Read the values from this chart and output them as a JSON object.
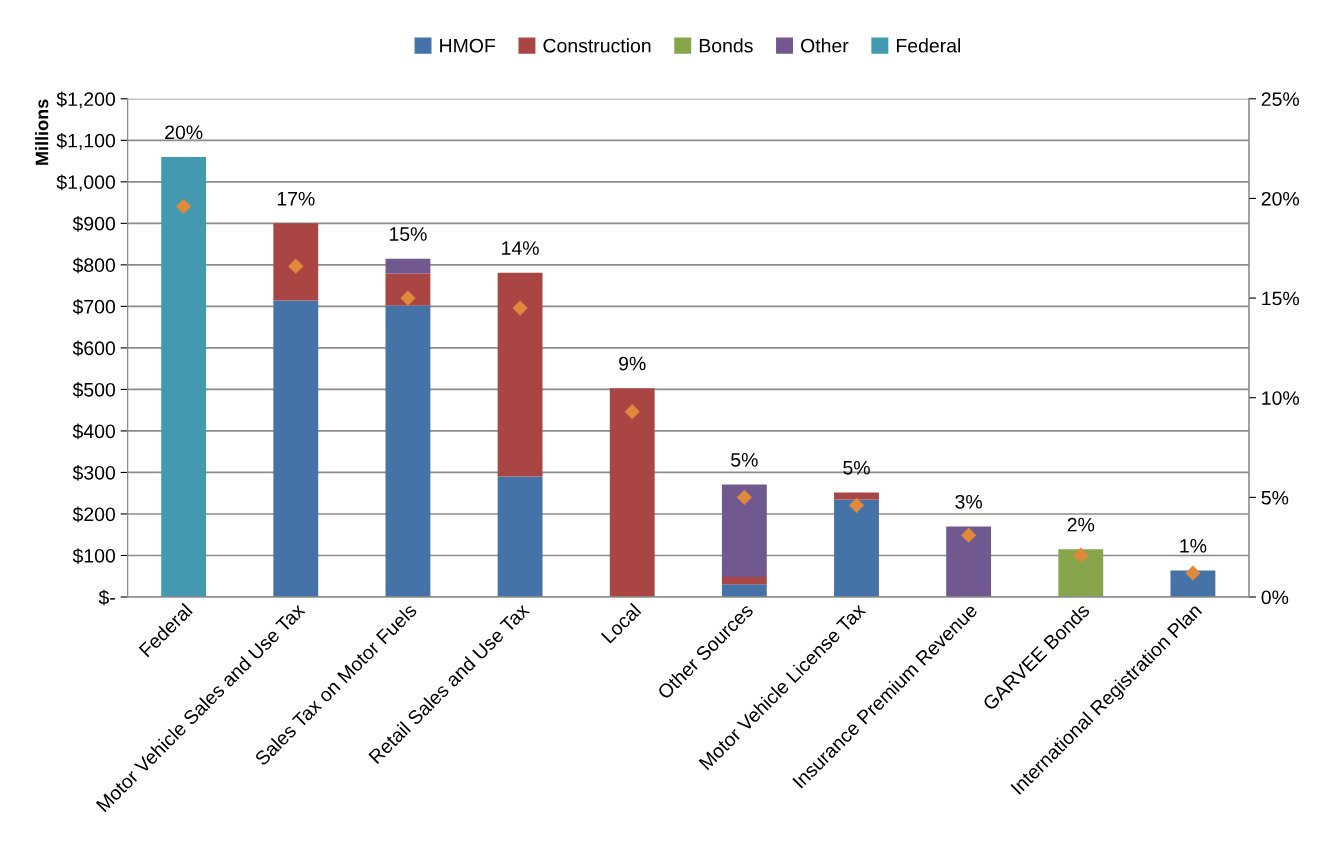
{
  "chart_data": {
    "type": "bar",
    "stacked": true,
    "ylabel": "Millions",
    "categories": [
      "Federal",
      "Motor Vehicle Sales and Use Tax",
      "Sales Tax on Motor Fuels",
      "Retail Sales and Use Tax",
      "Local",
      "Other Sources",
      "Motor Vehicle License Tax",
      "Insurance Premium Revenue",
      "GARVEE Bonds",
      "International Registration Plan"
    ],
    "series": [
      {
        "name": "HMOF",
        "color": "#4573a8",
        "values": [
          null,
          714,
          702,
          290,
          null,
          31,
          235,
          null,
          null,
          64
        ]
      },
      {
        "name": "Construction",
        "color": "#a94644",
        "values": [
          null,
          186,
          77,
          491,
          503,
          17,
          17,
          null,
          null,
          null
        ]
      },
      {
        "name": "Bonds",
        "color": "#87a54b",
        "values": [
          null,
          null,
          null,
          null,
          null,
          null,
          null,
          null,
          115,
          null
        ]
      },
      {
        "name": "Other",
        "color": "#71598f",
        "values": [
          null,
          null,
          36,
          null,
          null,
          223,
          null,
          170,
          null,
          null
        ]
      },
      {
        "name": "Federal",
        "color": "#4299b0",
        "values": [
          1060,
          null,
          null,
          null,
          null,
          null,
          null,
          null,
          null,
          null
        ]
      },
      {
        "type": "scatter",
        "axis": "y2",
        "color": "#e0883c",
        "marker": "diamond",
        "values": [
          19.6,
          16.6,
          15.0,
          14.5,
          9.3,
          5.0,
          4.6,
          3.1,
          2.1,
          1.2
        ],
        "value_labels": [
          "20%",
          "17%",
          "15%",
          "14%",
          "9%",
          "5%",
          "5%",
          "3%",
          "2%",
          "1%"
        ]
      }
    ],
    "ylim": [
      0,
      1200
    ],
    "yticks": [
      {
        "value": 0,
        "label": "$-"
      },
      {
        "value": 100,
        "label": "$100"
      },
      {
        "value": 200,
        "label": "$200"
      },
      {
        "value": 300,
        "label": "$300"
      },
      {
        "value": 400,
        "label": "$400"
      },
      {
        "value": 500,
        "label": "$500"
      },
      {
        "value": 600,
        "label": "$600"
      },
      {
        "value": 700,
        "label": "$700"
      },
      {
        "value": 800,
        "label": "$800"
      },
      {
        "value": 900,
        "label": "$900"
      },
      {
        "value": 1000,
        "label": "$1,000"
      },
      {
        "value": 1100,
        "label": "$1,100"
      },
      {
        "value": 1200,
        "label": "$1,200"
      }
    ],
    "y2lim": [
      0,
      25
    ],
    "y2ticks": [
      {
        "value": 0,
        "label": "0%"
      },
      {
        "value": 5,
        "label": "5%"
      },
      {
        "value": 10,
        "label": "10%"
      },
      {
        "value": 15,
        "label": "15%"
      },
      {
        "value": 20,
        "label": "20%"
      },
      {
        "value": 25,
        "label": "25%"
      }
    ],
    "grid": "y",
    "legend": "top"
  }
}
